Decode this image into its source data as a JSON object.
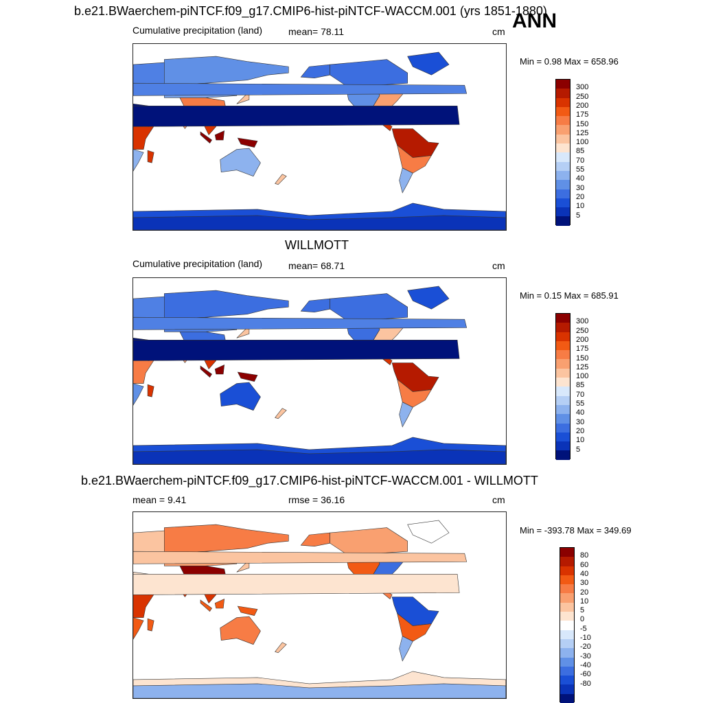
{
  "header": {
    "main_title": "b.e21.BWaerchem-piNTCF.f09_g17.CMIP6-hist-piNTCF-WACCM.001 (yrs 1851-1880)",
    "season": "ANN"
  },
  "panels": [
    {
      "id": "model",
      "section_title": "",
      "left_label": "Cumulative precipitation (land)",
      "stat_label": "mean=  78.11",
      "units": "cm",
      "minmax": "Min =   0.98 Max = 658.96",
      "colorbar_labels": [
        "300",
        "250",
        "200",
        "175",
        "150",
        "125",
        "100",
        "85",
        "70",
        "55",
        "40",
        "30",
        "20",
        "10",
        "5"
      ]
    },
    {
      "id": "obs",
      "section_title": "WILLMOTT",
      "left_label": "Cumulative precipitation (land)",
      "stat_label": "mean=  68.71",
      "units": "cm",
      "minmax": "Min =   0.15 Max = 685.91",
      "colorbar_labels": [
        "300",
        "250",
        "200",
        "175",
        "150",
        "125",
        "100",
        "85",
        "70",
        "55",
        "40",
        "30",
        "20",
        "10",
        "5"
      ]
    },
    {
      "id": "diff",
      "section_title": "b.e21.BWaerchem-piNTCF.f09_g17.CMIP6-hist-piNTCF-WACCM.001 - WILLMOTT",
      "left_label": "mean =   9.41",
      "stat_label": "rmse =  36.16",
      "units": "cm",
      "minmax": "Min = -393.78 Max = 349.69",
      "colorbar_labels": [
        "80",
        "60",
        "40",
        "30",
        "20",
        "10",
        "5",
        "0",
        "-5",
        "-10",
        "-20",
        "-30",
        "-40",
        "-60",
        "-80"
      ]
    }
  ],
  "colors": {
    "scale": [
      "#8b0000",
      "#b51a00",
      "#d93300",
      "#f25a14",
      "#f77c45",
      "#f9a070",
      "#fbc4a0",
      "#fde4d0",
      "#d8e8fb",
      "#b5cff5",
      "#8db2ee",
      "#6090e6",
      "#3c6ee0",
      "#1a4fd6",
      "#0a33b8",
      "#00127a"
    ],
    "diff_scale": [
      "#8b0000",
      "#b51a00",
      "#d93300",
      "#f25a14",
      "#f77c45",
      "#f9a070",
      "#fbc4a0",
      "#fde4d0",
      "#ffffff",
      "#d8e8fb",
      "#b5cff5",
      "#8db2ee",
      "#6090e6",
      "#3c6ee0",
      "#1a4fd6",
      "#0a33b8",
      "#00127a"
    ]
  }
}
